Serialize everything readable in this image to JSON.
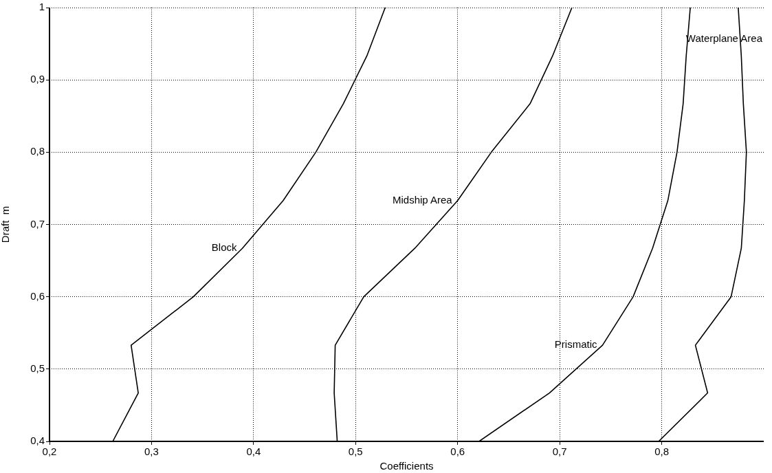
{
  "chart_data": {
    "type": "line",
    "xlabel": "Coefficients",
    "ylabel": "Draft  m",
    "xlim": [
      0.2,
      0.9
    ],
    "ylim": [
      0.4,
      1
    ],
    "xticks": [
      {
        "value": 0.2,
        "label": "0,2"
      },
      {
        "value": 0.3,
        "label": "0,3"
      },
      {
        "value": 0.4,
        "label": "0,4"
      },
      {
        "value": 0.5,
        "label": "0,5"
      },
      {
        "value": 0.6,
        "label": "0,6"
      },
      {
        "value": 0.7,
        "label": "0,7"
      },
      {
        "value": 0.8,
        "label": "0,8"
      }
    ],
    "yticks": [
      {
        "value": 0.4,
        "label": "0,4"
      },
      {
        "value": 0.5,
        "label": "0,5"
      },
      {
        "value": 0.6,
        "label": "0,6"
      },
      {
        "value": 0.7,
        "label": "0,7"
      },
      {
        "value": 0.8,
        "label": "0,8"
      },
      {
        "value": 0.9,
        "label": "0,9"
      },
      1
    ],
    "grid": true,
    "legend": false,
    "marker": "none",
    "line_style": "solid",
    "series": [
      {
        "color": "#000000",
        "x": [
          0.262,
          0.287,
          0.28,
          0.341,
          0.389,
          0.429,
          0.461,
          0.488,
          0.511,
          0.529
        ],
        "values": [
          0.4,
          0.467,
          0.533,
          0.6,
          0.667,
          0.733,
          0.8,
          0.867,
          0.933,
          1
        ]
      },
      {
        "color": "#000000",
        "x": [
          0.482,
          0.479,
          0.48,
          0.508,
          0.558,
          0.6,
          0.633,
          0.671,
          0.693,
          0.712
        ],
        "values": [
          0.4,
          0.467,
          0.533,
          0.6,
          0.667,
          0.733,
          0.8,
          0.867,
          0.933,
          1
        ]
      },
      {
        "color": "#000000",
        "x": [
          0.621,
          0.69,
          0.742,
          0.772,
          0.791,
          0.806,
          0.815,
          0.821,
          0.824,
          0.828
        ],
        "values": [
          0.4,
          0.467,
          0.533,
          0.6,
          0.667,
          0.733,
          0.8,
          0.867,
          0.933,
          1
        ]
      },
      {
        "color": "#000000",
        "x": [
          0.797,
          0.845,
          0.833,
          0.868,
          0.878,
          0.881,
          0.883,
          0.88,
          0.878,
          0.875
        ],
        "values": [
          0.4,
          0.467,
          0.533,
          0.6,
          0.667,
          0.733,
          0.8,
          0.867,
          0.933,
          1
        ]
      }
    ],
    "annotations": [
      {
        "text": "Block",
        "x": 0.389,
        "y": 0.667
      },
      {
        "text": "Midship Area",
        "x": 0.6,
        "y": 0.733
      },
      {
        "text": "Prismatic",
        "x": 0.742,
        "y": 0.533
      },
      "Waterplane Area"
    ]
  }
}
